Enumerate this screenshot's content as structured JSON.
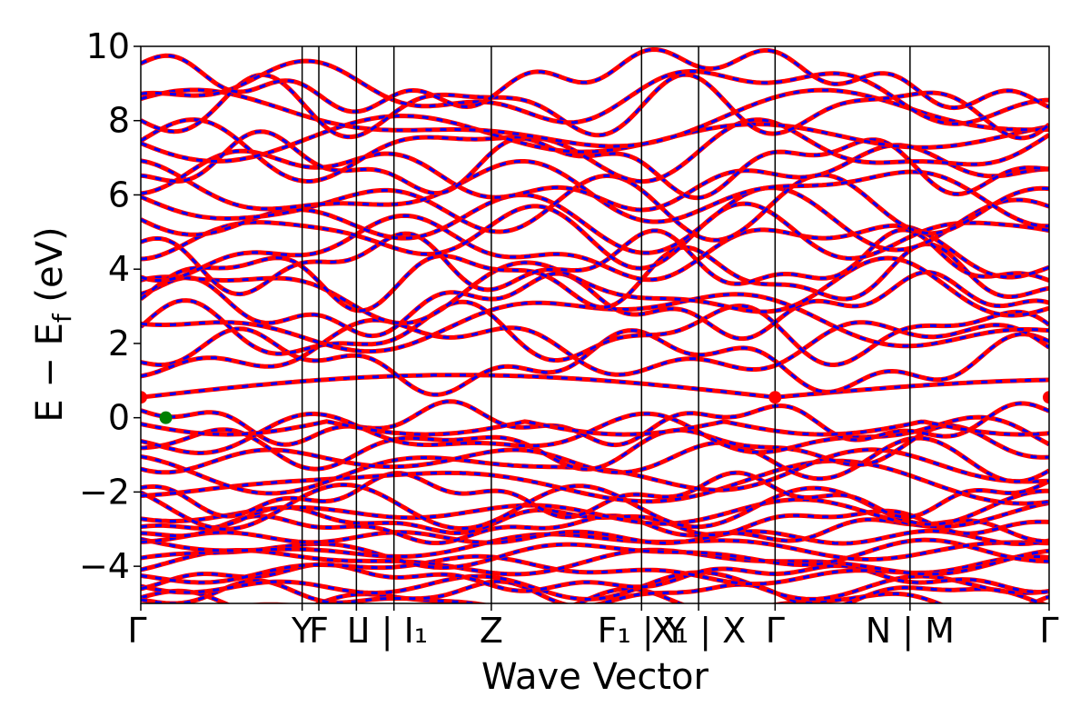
{
  "chart_data": {
    "type": "line",
    "xlabel": "Wave Vector",
    "ylabel": "E − E",
    "ylabel_sub": "f",
    "ylabel_unit": " (eV)",
    "ylim": [
      -5,
      10
    ],
    "yticks": [
      -4,
      -2,
      0,
      2,
      4,
      6,
      8,
      10
    ],
    "ytick_labels": [
      "−4",
      "−2",
      "0",
      "2",
      "4",
      "6",
      "8",
      "10"
    ],
    "path_ticks": [
      {
        "x": 0.0,
        "label": "Γ"
      },
      {
        "x": 1.16,
        "label": "Y"
      },
      {
        "x": 1.28,
        "label": "F"
      },
      {
        "x": 1.55,
        "label": "L"
      },
      {
        "x": 1.82,
        "label": "I | I₁"
      },
      {
        "x": 2.52,
        "label": "Z"
      },
      {
        "x": 3.6,
        "label": "F₁ | Y"
      },
      {
        "x": 4.01,
        "label": "X₁ | X"
      },
      {
        "x": 4.56,
        "label": "Γ"
      },
      {
        "x": 5.53,
        "label": "N | M"
      },
      {
        "x": 6.53,
        "label": "Γ"
      }
    ],
    "xlim": [
      0,
      6.53
    ],
    "grid": false,
    "series": [
      {
        "color": "#ff0000",
        "style": "solid"
      },
      {
        "color": "#0000ff",
        "style": "dashed"
      }
    ],
    "markers": [
      {
        "x": 0.0,
        "y": 0.55,
        "color": "#ff0000"
      },
      {
        "x": 4.56,
        "y": 0.55,
        "color": "#ff0000"
      },
      {
        "x": 6.53,
        "y": 0.55,
        "color": "#ff0000"
      },
      {
        "x": 0.18,
        "y": 0.0,
        "color": "#008000"
      }
    ],
    "band_edges": {
      "conduction_min": 0.55,
      "valence_max": 0.0
    }
  }
}
